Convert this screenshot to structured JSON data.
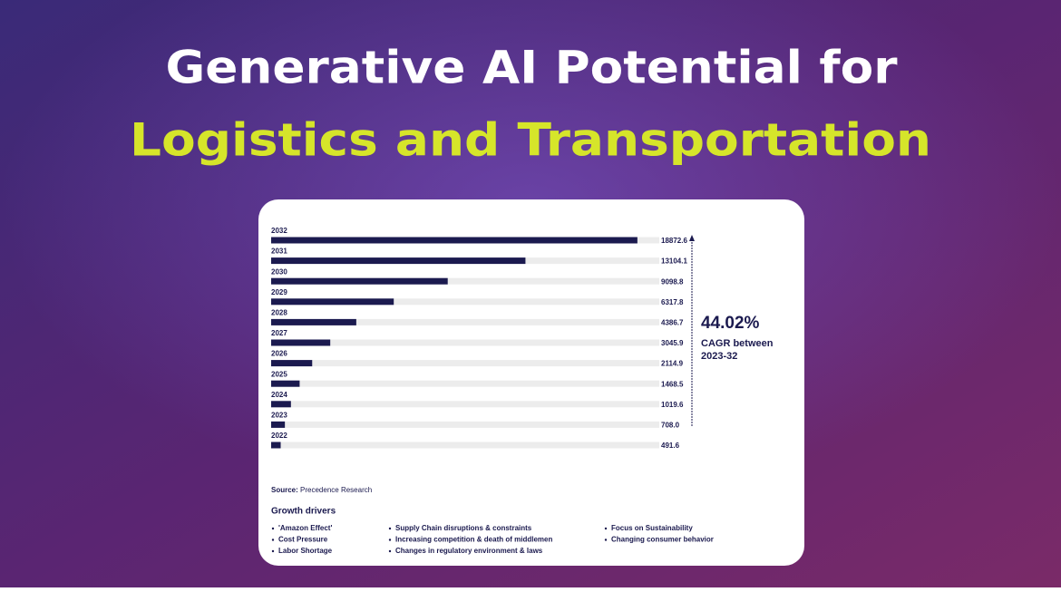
{
  "header": {
    "title_line1": "Generative AI Potential for",
    "title_line2": "Logistics and Transportation"
  },
  "chart_data": {
    "type": "bar",
    "orientation": "horizontal",
    "categories": [
      "2032",
      "2031",
      "2030",
      "2029",
      "2028",
      "2027",
      "2026",
      "2025",
      "2024",
      "2023",
      "2022"
    ],
    "values": [
      18872.6,
      13104.1,
      9098.8,
      6317.8,
      4386.7,
      3045.9,
      2114.9,
      1468.5,
      1019.6,
      708.0,
      491.6
    ],
    "value_labels": [
      "18872.6",
      "13104.1",
      "9098.8",
      "6317.8",
      "4386.7",
      "3045.9",
      "2114.9",
      "1468.5",
      "1019.6",
      "708.0",
      "491.6"
    ],
    "color": "#1b1a4f",
    "xlim": [
      0,
      20000
    ]
  },
  "annotation": {
    "value": "44.02%",
    "line1": "CAGR between",
    "line2": "2023-32"
  },
  "source": {
    "label": "Source:",
    "text": "Precedence Research"
  },
  "growth_drivers": {
    "title": "Growth drivers",
    "columns": [
      [
        "'Amazon Effect'",
        "Cost Pressure",
        "Labor Shortage"
      ],
      [
        "Supply Chain disruptions & constraints",
        "Increasing competition & death of middlemen",
        "Changes in regulatory environment & laws"
      ],
      [
        "Focus on Sustainability",
        "Changing consumer behavior"
      ]
    ]
  }
}
